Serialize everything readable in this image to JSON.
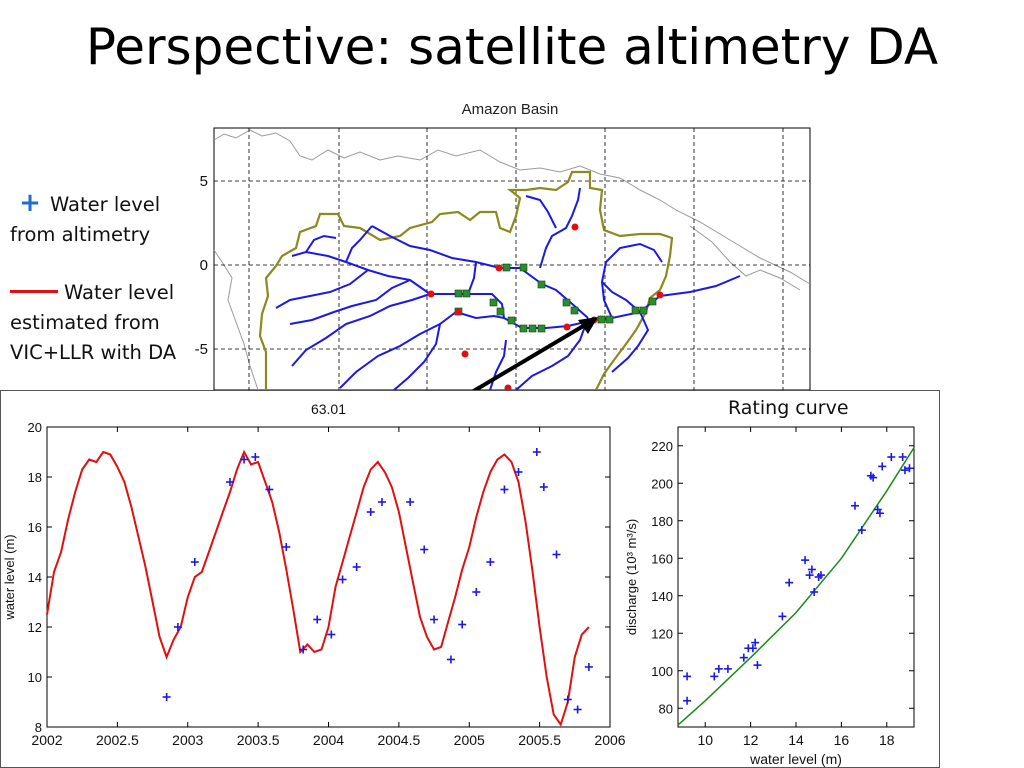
{
  "slide": {
    "title": "Perspective: satellite altimetry DA"
  },
  "legend": {
    "altimetry_symbol": "+",
    "altimetry_line1": "Water level",
    "altimetry_line2": "from altimetry",
    "da_line1": "Water level",
    "da_line2": "estimated from",
    "da_line3": "VIC+LLR with DA",
    "altimetry_color": "#1f6fc8",
    "da_color": "#e01010"
  },
  "map": {
    "title": "Amazon Basin",
    "y_ticks": [
      "5",
      "0",
      "-5"
    ],
    "basin_outline_color": "#8a8a1e",
    "river_color": "#1a1ae6",
    "gauge_color": "#e01010",
    "station_color": "#2e8b2e"
  },
  "chart_data": [
    {
      "type": "line",
      "title": "63.01",
      "xlabel": "",
      "ylabel": "water level (m)",
      "xlim": [
        2002,
        2006
      ],
      "ylim": [
        8,
        20
      ],
      "x_ticks": [
        "2002",
        "2002.5",
        "2003",
        "2003.5",
        "2004",
        "2004.5",
        "2005",
        "2005.5",
        "2006"
      ],
      "y_ticks": [
        "8",
        "10",
        "12",
        "14",
        "16",
        "18",
        "20"
      ],
      "series": [
        {
          "style": "line",
          "color": "#e01010",
          "points": [
            [
              2002.0,
              12.5
            ],
            [
              2002.05,
              14.2
            ],
            [
              2002.1,
              15.0
            ],
            [
              2002.15,
              16.3
            ],
            [
              2002.2,
              17.4
            ],
            [
              2002.25,
              18.3
            ],
            [
              2002.3,
              18.7
            ],
            [
              2002.35,
              18.6
            ],
            [
              2002.4,
              19.0
            ],
            [
              2002.45,
              18.9
            ],
            [
              2002.5,
              18.4
            ],
            [
              2002.55,
              17.8
            ],
            [
              2002.6,
              16.8
            ],
            [
              2002.65,
              15.6
            ],
            [
              2002.7,
              14.4
            ],
            [
              2002.75,
              13.0
            ],
            [
              2002.8,
              11.6
            ],
            [
              2002.85,
              10.8
            ],
            [
              2002.9,
              11.5
            ],
            [
              2002.95,
              12.0
            ],
            [
              2003.0,
              13.2
            ],
            [
              2003.05,
              14.0
            ],
            [
              2003.1,
              14.2
            ],
            [
              2003.15,
              15.0
            ],
            [
              2003.2,
              15.8
            ],
            [
              2003.25,
              16.6
            ],
            [
              2003.3,
              17.4
            ],
            [
              2003.35,
              18.3
            ],
            [
              2003.4,
              19.0
            ],
            [
              2003.45,
              18.5
            ],
            [
              2003.5,
              18.6
            ],
            [
              2003.55,
              17.8
            ],
            [
              2003.6,
              17.0
            ],
            [
              2003.65,
              15.8
            ],
            [
              2003.7,
              14.3
            ],
            [
              2003.75,
              12.7
            ],
            [
              2003.8,
              11.0
            ],
            [
              2003.85,
              11.3
            ],
            [
              2003.9,
              11.0
            ],
            [
              2003.95,
              11.1
            ],
            [
              2004.0,
              12.0
            ],
            [
              2004.05,
              13.6
            ],
            [
              2004.1,
              14.6
            ],
            [
              2004.15,
              15.6
            ],
            [
              2004.2,
              16.6
            ],
            [
              2004.25,
              17.6
            ],
            [
              2004.3,
              18.3
            ],
            [
              2004.35,
              18.6
            ],
            [
              2004.4,
              18.2
            ],
            [
              2004.45,
              17.6
            ],
            [
              2004.5,
              16.6
            ],
            [
              2004.55,
              15.2
            ],
            [
              2004.6,
              13.8
            ],
            [
              2004.65,
              12.4
            ],
            [
              2004.7,
              11.6
            ],
            [
              2004.75,
              11.1
            ],
            [
              2004.8,
              11.2
            ],
            [
              2004.85,
              12.2
            ],
            [
              2004.9,
              13.2
            ],
            [
              2004.95,
              14.3
            ],
            [
              2005.0,
              15.2
            ],
            [
              2005.05,
              16.4
            ],
            [
              2005.1,
              17.4
            ],
            [
              2005.15,
              18.2
            ],
            [
              2005.2,
              18.7
            ],
            [
              2005.25,
              18.9
            ],
            [
              2005.3,
              18.6
            ],
            [
              2005.35,
              17.8
            ],
            [
              2005.4,
              16.2
            ],
            [
              2005.45,
              14.2
            ],
            [
              2005.5,
              12.0
            ],
            [
              2005.55,
              10.0
            ],
            [
              2005.6,
              8.5
            ],
            [
              2005.65,
              8.1
            ],
            [
              2005.7,
              9.0
            ],
            [
              2005.75,
              10.8
            ],
            [
              2005.8,
              11.7
            ],
            [
              2005.85,
              12.0
            ]
          ]
        },
        {
          "style": "markers",
          "marker": "+",
          "color": "#1a1ae6",
          "points": [
            [
              2002.85,
              9.2
            ],
            [
              2002.93,
              12.0
            ],
            [
              2003.05,
              14.6
            ],
            [
              2003.3,
              17.8
            ],
            [
              2003.4,
              18.7
            ],
            [
              2003.48,
              18.8
            ],
            [
              2003.58,
              17.5
            ],
            [
              2003.7,
              15.2
            ],
            [
              2003.82,
              11.1
            ],
            [
              2003.92,
              12.3
            ],
            [
              2004.02,
              11.7
            ],
            [
              2004.1,
              13.9
            ],
            [
              2004.2,
              14.4
            ],
            [
              2004.3,
              16.6
            ],
            [
              2004.38,
              17.0
            ],
            [
              2004.58,
              17.0
            ],
            [
              2004.68,
              15.1
            ],
            [
              2004.75,
              12.3
            ],
            [
              2004.87,
              10.7
            ],
            [
              2004.95,
              12.1
            ],
            [
              2005.05,
              13.4
            ],
            [
              2005.15,
              14.6
            ],
            [
              2005.25,
              17.5
            ],
            [
              2005.35,
              18.2
            ],
            [
              2005.48,
              19.0
            ],
            [
              2005.53,
              17.6
            ],
            [
              2005.62,
              14.9
            ],
            [
              2005.7,
              9.1
            ],
            [
              2005.77,
              8.7
            ],
            [
              2005.85,
              10.4
            ]
          ]
        }
      ]
    },
    {
      "type": "scatter",
      "title": "Rating curve",
      "xlabel": "water level (m)",
      "ylabel": "discharge (10³ m³/s)",
      "xlim": [
        8.8,
        19.2
      ],
      "ylim": [
        70,
        230
      ],
      "x_ticks": [
        "10",
        "12",
        "14",
        "16",
        "18"
      ],
      "y_ticks": [
        "80",
        "100",
        "120",
        "140",
        "160",
        "180",
        "200",
        "220"
      ],
      "fit_line": {
        "color": "#1a8a1a",
        "points": [
          [
            8.8,
            71
          ],
          [
            10,
            84
          ],
          [
            12,
            107
          ],
          [
            14,
            131
          ],
          [
            16,
            160
          ],
          [
            18,
            196
          ],
          [
            19.2,
            219
          ]
        ]
      },
      "markers": {
        "marker": "+",
        "color": "#1a1ae6",
        "points": [
          [
            9.2,
            84
          ],
          [
            9.2,
            97
          ],
          [
            10.4,
            97
          ],
          [
            10.6,
            101
          ],
          [
            11.0,
            101
          ],
          [
            11.7,
            107
          ],
          [
            11.9,
            112
          ],
          [
            12.1,
            112
          ],
          [
            12.2,
            115
          ],
          [
            12.3,
            103
          ],
          [
            13.4,
            129
          ],
          [
            13.7,
            147
          ],
          [
            14.4,
            159
          ],
          [
            14.6,
            151
          ],
          [
            14.7,
            154
          ],
          [
            14.8,
            142
          ],
          [
            15.0,
            150
          ],
          [
            15.1,
            151
          ],
          [
            16.6,
            188
          ],
          [
            16.9,
            175
          ],
          [
            17.3,
            204
          ],
          [
            17.4,
            203
          ],
          [
            17.6,
            186
          ],
          [
            17.7,
            184
          ],
          [
            17.8,
            209
          ],
          [
            18.2,
            214
          ],
          [
            18.7,
            214
          ],
          [
            18.8,
            207
          ],
          [
            19.0,
            208
          ]
        ]
      }
    }
  ]
}
